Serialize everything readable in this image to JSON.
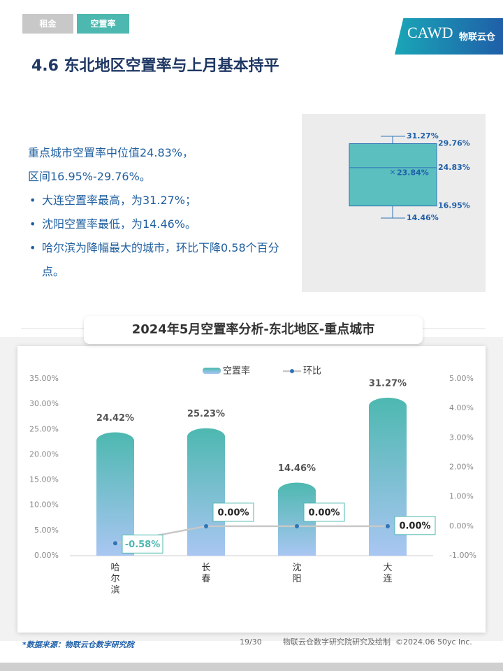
{
  "tabs": [
    "租金",
    "空置率"
  ],
  "logo": {
    "mark": "CAWD",
    "brand": "物联云仓"
  },
  "title": "4.6 东北地区空置率与上月基本持平",
  "summary": {
    "intro": [
      "重点城市空置率中位值24.83%，",
      "区间16.95%-29.76%。"
    ],
    "bullets": [
      "大连空置率最高，为31.27%；",
      "沈阳空置率最低，为14.46%。",
      "哈尔滨为降幅最大的城市，环比下降0.58个百分点。"
    ]
  },
  "chart_data": [
    {
      "type": "box",
      "color": "#5bbfc0",
      "stroke": "#2e75b6",
      "max": 31.27,
      "q3": 29.76,
      "median": 24.83,
      "mean": 23.84,
      "q1": 16.95,
      "min": 14.46,
      "value_labels": {
        "max": "31.27%",
        "q3": "29.76%",
        "median": "24.83%",
        "mean": "23.84%",
        "q1": "16.95%",
        "min": "14.46%"
      }
    },
    {
      "type": "bar-line",
      "title": "2024年5月空置率分析-东北地区-重点城市",
      "categories": [
        "哈尔滨",
        "长春",
        "沈阳",
        "大连"
      ],
      "series": [
        {
          "name": "空置率",
          "type": "bar",
          "color": "#4db8b0",
          "color2": "#a9c6f2",
          "values": [
            24.42,
            25.23,
            14.46,
            31.27
          ],
          "value_labels": [
            "24.42%",
            "25.23%",
            "14.46%",
            "31.27%"
          ]
        },
        {
          "name": "环比",
          "type": "line",
          "axis": "y2",
          "color": "#c8c8c8",
          "marker_color": "#2e75b6",
          "values": [
            -0.58,
            0,
            0,
            0
          ],
          "value_labels": [
            "-0.58%",
            "0.00%",
            "0.00%",
            "0.00%"
          ]
        }
      ],
      "ylim": [
        0,
        35
      ],
      "yticks": [
        {
          "value": 0,
          "label": "0.00%"
        },
        {
          "value": 5,
          "label": "5.00%"
        },
        {
          "value": 10,
          "label": "10.00%"
        },
        {
          "value": 15,
          "label": "15.00%"
        },
        {
          "value": 20,
          "label": "20.00%"
        },
        {
          "value": 25,
          "label": "25.00%"
        },
        {
          "value": 30,
          "label": "30.00%"
        },
        {
          "value": 35,
          "label": "35.00%"
        }
      ],
      "y2lim": [
        -1,
        5
      ],
      "y2ticks": [
        {
          "value": -1,
          "label": "-1.00%"
        },
        {
          "value": 0,
          "label": "0.00%"
        },
        {
          "value": 1,
          "label": "1.00%"
        },
        {
          "value": 2,
          "label": "2.00%"
        },
        {
          "value": 3,
          "label": "3.00%"
        },
        {
          "value": 4,
          "label": "4.00%"
        },
        {
          "value": 5,
          "label": "5.00%"
        }
      ],
      "legend": "top"
    }
  ],
  "footer": {
    "source": "*数据来源：物联云仓数字研究院",
    "page": "19/30",
    "credit": "物联云仓数字研究院研究及绘制  ©2024.06 50yc Inc."
  }
}
